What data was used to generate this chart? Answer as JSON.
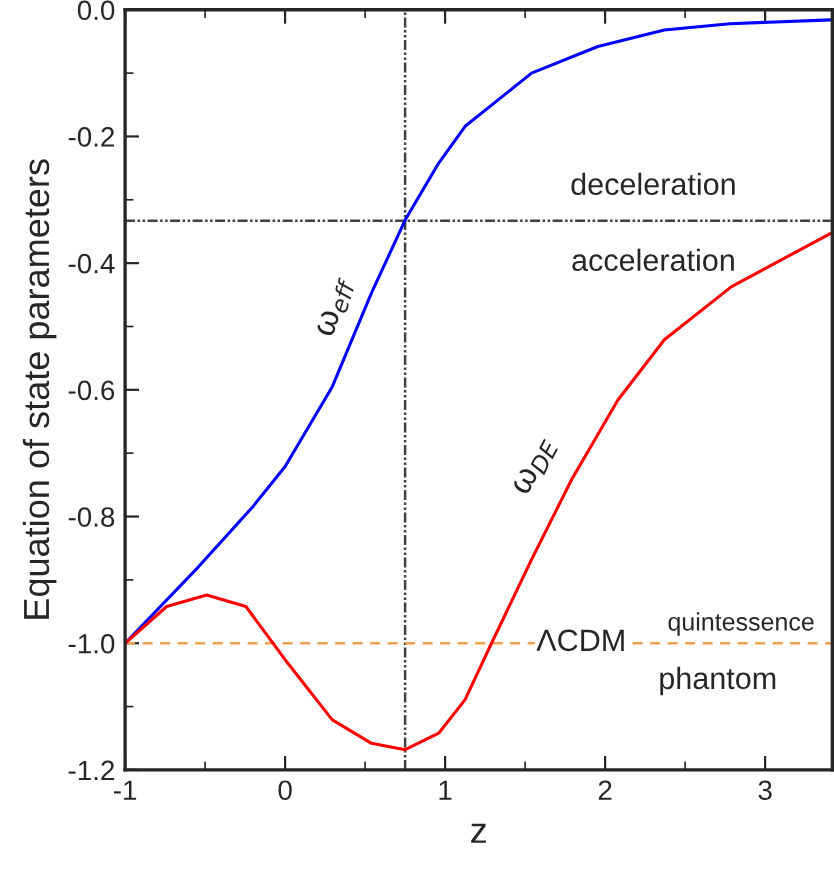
{
  "chart_data": {
    "type": "line",
    "xlabel": "z",
    "ylabel": "Equation of state parameters",
    "xlim": [
      -1,
      3.42
    ],
    "ylim": [
      -1.2,
      0.0
    ],
    "xticks": [
      -1,
      0,
      1,
      2,
      3
    ],
    "yticks": [
      -1.2,
      {
        "value": -1.0,
        "label": "-1.0"
      },
      -0.8,
      -0.6,
      -0.4,
      -0.2,
      {
        "value": 0.0,
        "label": "0.0"
      }
    ],
    "grid": false,
    "legend": false,
    "marker": "none",
    "series": [
      {
        "color": "#0000ff",
        "x": [
          -1,
          -0.54,
          -0.2,
          0,
          0.295,
          0.54,
          0.75,
          0.96,
          1.125,
          1.54,
          1.955,
          2.37,
          2.78,
          3.41
        ],
        "values": [
          -1.0,
          -0.879,
          -0.784,
          -0.721,
          -0.595,
          -0.447,
          -0.332,
          -0.242,
          -0.184,
          -0.1,
          -0.058,
          -0.032,
          -0.022,
          -0.016
        ]
      },
      {
        "color": "#ff0000",
        "x": [
          -1,
          -0.74,
          -0.49,
          -0.245,
          0,
          0.295,
          0.54,
          0.75,
          0.96,
          1.125,
          1.29,
          1.54,
          1.79,
          2.08,
          2.37,
          2.79,
          3.41
        ],
        "values": [
          -1.0,
          -0.942,
          -0.924,
          -0.942,
          -1.026,
          -1.121,
          -1.158,
          -1.168,
          -1.142,
          -1.089,
          -1.0,
          -0.868,
          -0.742,
          -0.616,
          -0.521,
          -0.437,
          -0.353
        ]
      }
    ],
    "ref_lines": [
      {
        "axis": "y",
        "value": -0.333,
        "color": "#404040",
        "line_style": "dotted"
      },
      {
        "axis": "x",
        "value": 0.75,
        "color": "#404040",
        "line_style": "dotted"
      },
      {
        "axis": "y",
        "value": -1.0,
        "color": "#f0a050",
        "line_style": "dashed"
      }
    ],
    "annotations": [
      "deceleration",
      "acceleration",
      "ω$_{eff}$",
      "ω$_{DE}$",
      "ΛCDM",
      "quintessence",
      "phantom"
    ]
  }
}
